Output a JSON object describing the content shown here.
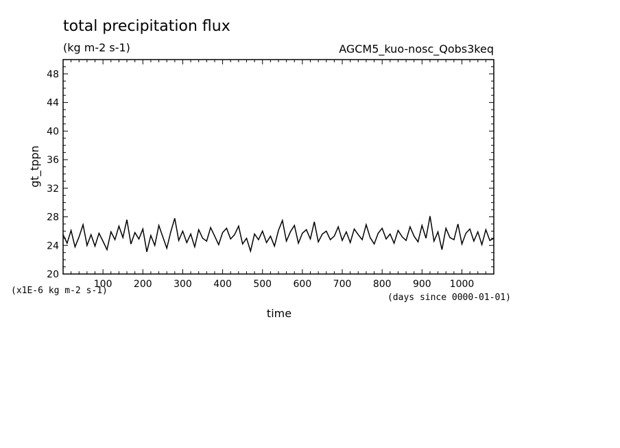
{
  "chart_data": {
    "type": "line",
    "title": "total precipitation flux",
    "subtitle": "(kg m-2 s-1)",
    "experiment": "AGCM5_kuo-nosc_Qobs3keq",
    "xlabel": "time",
    "x_unit_note": "(days since 0000-01-01)",
    "ylabel": "gt_tppn",
    "y_scale_note": "(x1E-6 kg m-2 s-1)",
    "xlim": [
      0,
      1080
    ],
    "ylim": [
      20,
      50
    ],
    "x_ticks": [
      100,
      200,
      300,
      400,
      500,
      600,
      700,
      800,
      900,
      1000
    ],
    "y_ticks": [
      20,
      24,
      28,
      32,
      36,
      40,
      44,
      48
    ],
    "series": [
      {
        "color": "#000000",
        "x": [
          0,
          10,
          20,
          30,
          40,
          50,
          60,
          70,
          80,
          90,
          100,
          110,
          120,
          130,
          140,
          150,
          160,
          170,
          180,
          190,
          200,
          210,
          220,
          230,
          240,
          250,
          260,
          270,
          280,
          290,
          300,
          310,
          320,
          330,
          340,
          350,
          360,
          370,
          380,
          390,
          400,
          410,
          420,
          430,
          440,
          450,
          460,
          470,
          480,
          490,
          500,
          510,
          520,
          530,
          540,
          550,
          560,
          570,
          580,
          590,
          600,
          610,
          620,
          630,
          640,
          650,
          660,
          670,
          680,
          690,
          700,
          710,
          720,
          730,
          740,
          750,
          760,
          770,
          780,
          790,
          800,
          810,
          820,
          830,
          840,
          850,
          860,
          870,
          880,
          890,
          900,
          910,
          920,
          930,
          940,
          950,
          960,
          970,
          980,
          990,
          1000,
          1010,
          1020,
          1030,
          1040,
          1050,
          1060,
          1070,
          1080
        ],
        "y": [
          25.5,
          24.3,
          26.1,
          23.8,
          25.2,
          26.9,
          24.0,
          25.5,
          23.9,
          25.7,
          24.6,
          23.4,
          25.9,
          24.8,
          26.7,
          25.1,
          27.6,
          24.2,
          25.8,
          24.9,
          26.3,
          23.1,
          25.4,
          24.0,
          26.8,
          25.2,
          23.6,
          25.9,
          27.8,
          24.7,
          26.0,
          24.4,
          25.6,
          23.8,
          26.2,
          25.0,
          24.6,
          26.5,
          25.3,
          24.1,
          25.8,
          26.4,
          24.9,
          25.5,
          26.7,
          24.2,
          25.0,
          23.2,
          25.6,
          24.8,
          26.0,
          24.4,
          25.3,
          23.9,
          26.1,
          27.5,
          24.6,
          25.9,
          26.8,
          24.3,
          25.7,
          26.2,
          24.9,
          27.3,
          24.5,
          25.6,
          26.0,
          24.8,
          25.3,
          26.6,
          24.7,
          25.9,
          24.4,
          26.3,
          25.5,
          24.8,
          26.9,
          25.1,
          24.2,
          25.7,
          26.4,
          24.9,
          25.6,
          24.3,
          26.1,
          25.2,
          24.7,
          26.6,
          25.3,
          24.5,
          26.8,
          25.0,
          28.1,
          24.6,
          25.9,
          23.4,
          26.4,
          25.1,
          24.8,
          27.0,
          24.2,
          25.7,
          26.3,
          24.6,
          25.9,
          24.1,
          26.2,
          24.7,
          25.0
        ]
      }
    ]
  }
}
